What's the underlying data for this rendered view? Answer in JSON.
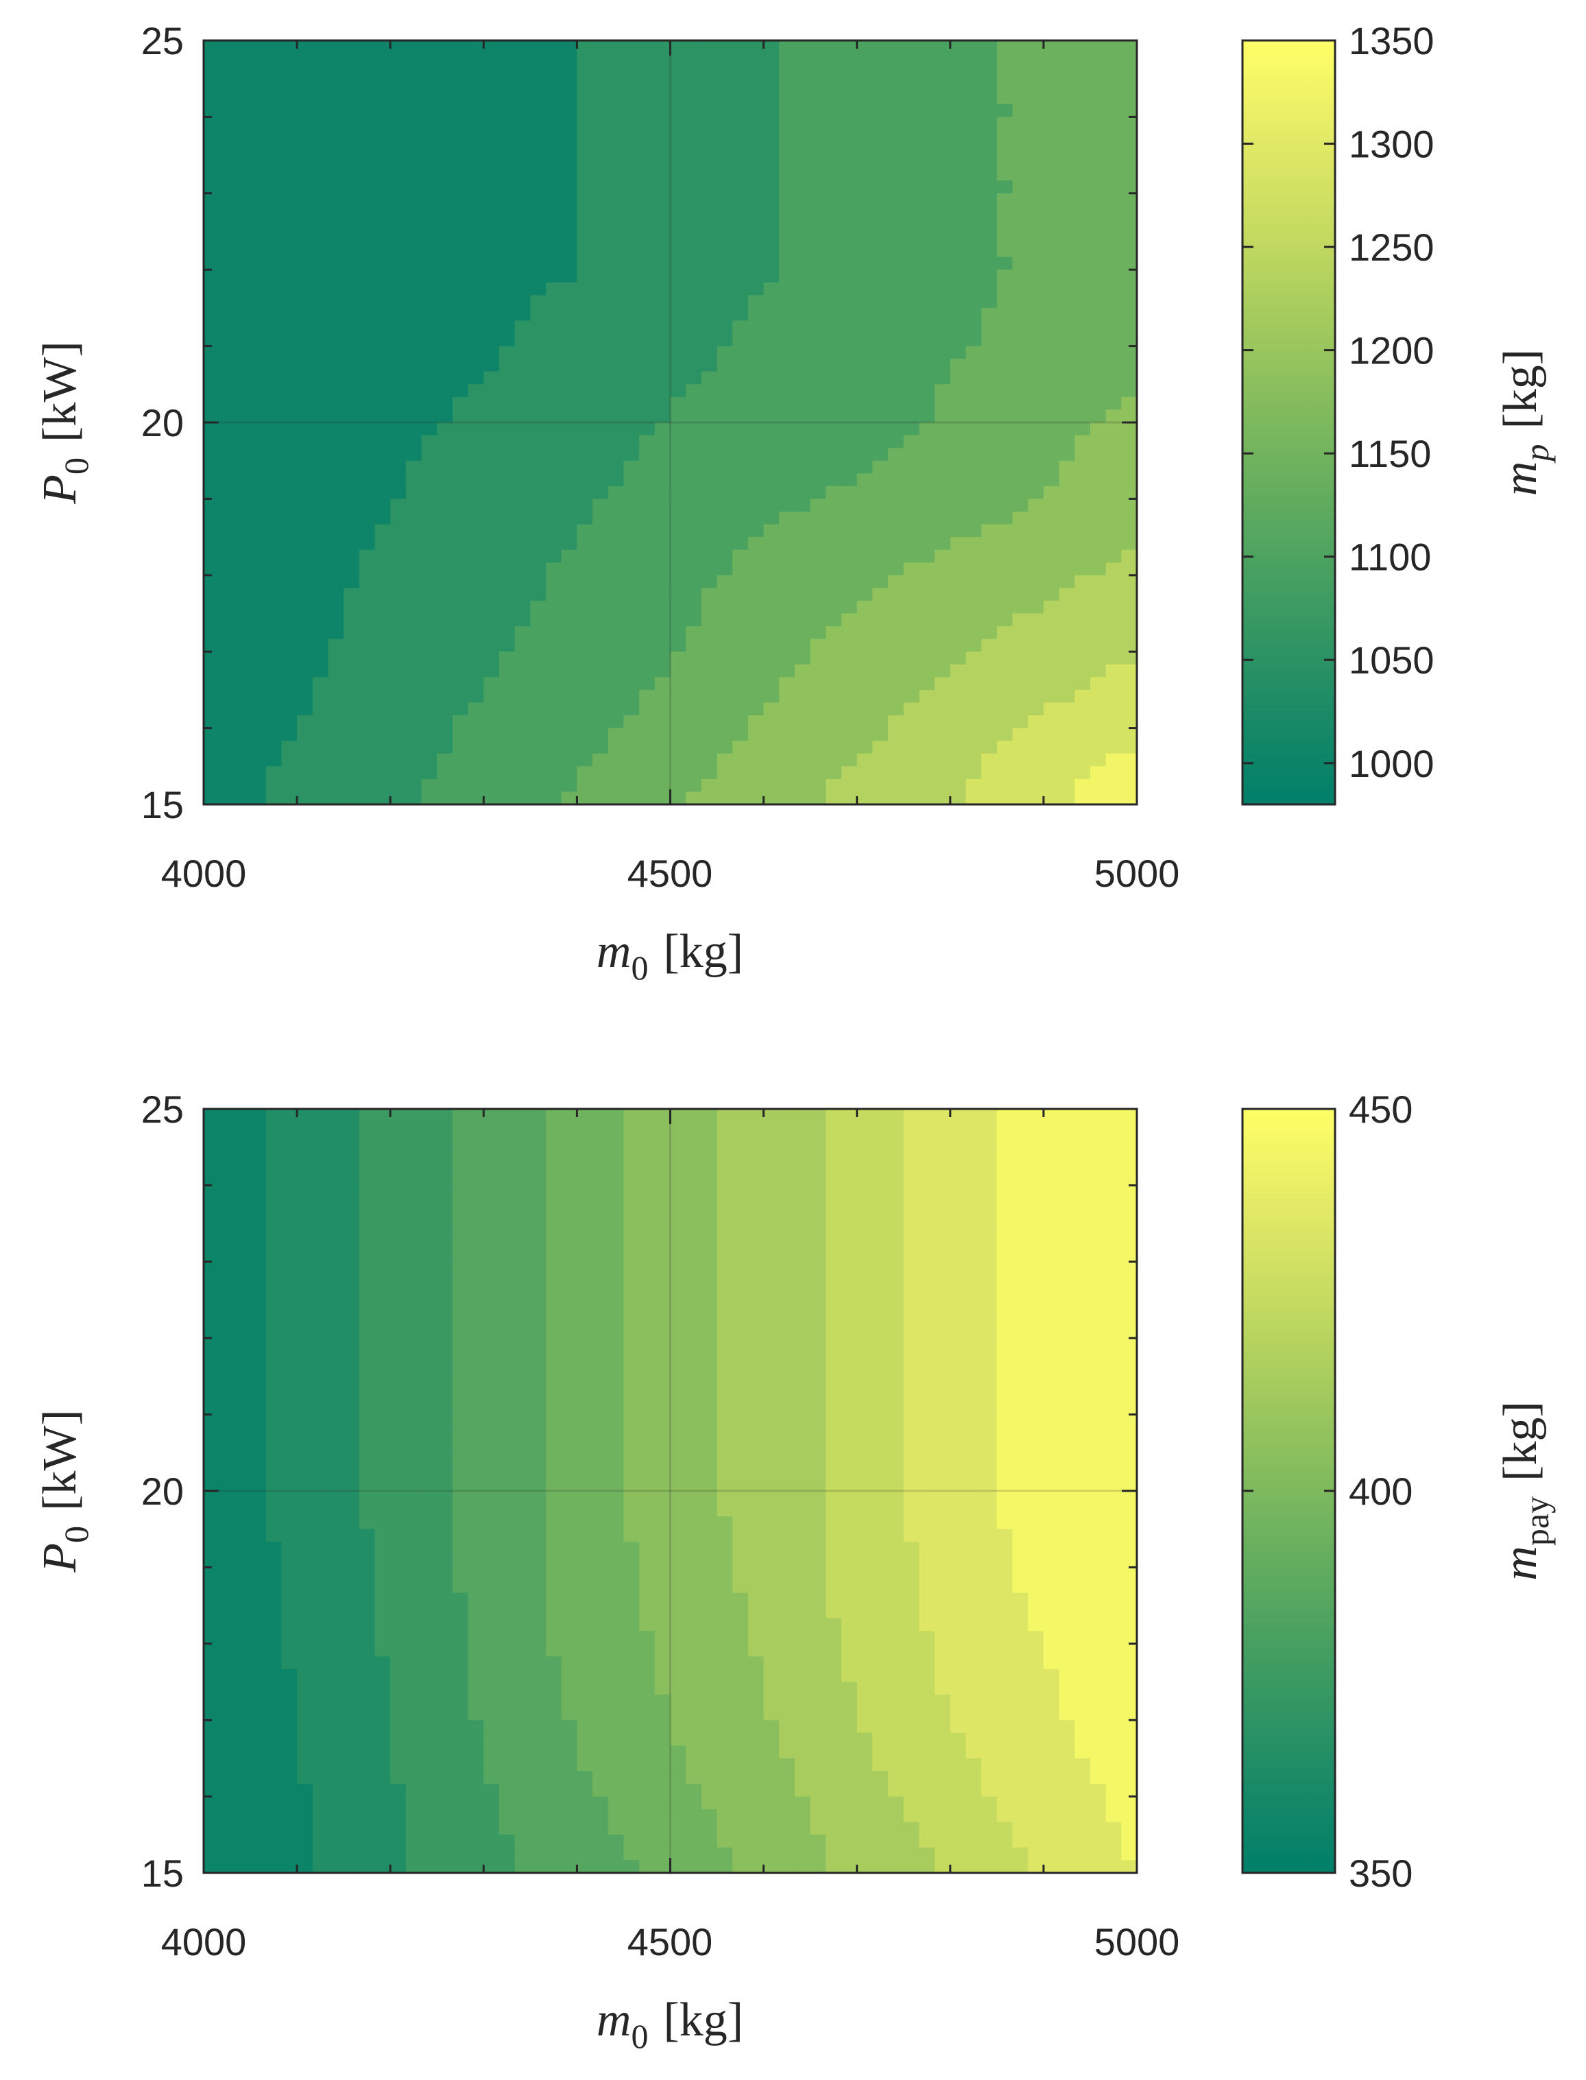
{
  "chart_data": [
    {
      "type": "heatmap",
      "subtype": "filled-contour",
      "xlabel": "m0 [kg]",
      "xlabel_parts": {
        "var": "m",
        "sub": "0",
        "unit": "[kg]"
      },
      "ylabel": "P0 [kW]",
      "ylabel_parts": {
        "var": "P",
        "sub": "0",
        "unit": "[kW]"
      },
      "colorbar_label": "mp [kg]",
      "colorbar_label_parts": {
        "var": "m",
        "sub": "p",
        "sub_italic": true,
        "unit": "[kg]"
      },
      "xlim": [
        4000,
        5000
      ],
      "ylim": [
        15,
        25
      ],
      "xticks": [
        4000,
        4500,
        5000
      ],
      "xtick_labels": [
        "4000",
        "4500",
        "5000"
      ],
      "yticks": [
        15,
        20,
        25
      ],
      "ytick_labels": [
        "15",
        "20",
        "25"
      ],
      "clim": [
        980,
        1350
      ],
      "cticks": [
        1000,
        1050,
        1100,
        1150,
        1200,
        1250,
        1300,
        1350
      ],
      "ctick_labels": [
        "1000",
        "1050",
        "1100",
        "1150",
        "1200",
        "1250",
        "1300",
        "1350"
      ],
      "grid": true,
      "x": [
        4000,
        4100,
        4200,
        4300,
        4400,
        4500,
        4600,
        4700,
        4800,
        4900,
        5000
      ],
      "y": [
        15,
        16,
        17,
        18,
        19,
        20,
        21,
        22,
        23,
        24,
        25
      ],
      "z": [
        [
          1005,
          1040,
          1065,
          1090,
          1125,
          1160,
          1195,
          1225,
          1255,
          1295,
          1340
        ],
        [
          1002,
          1025,
          1055,
          1080,
          1105,
          1135,
          1170,
          1200,
          1235,
          1265,
          1295
        ],
        [
          1000,
          1015,
          1045,
          1065,
          1090,
          1115,
          1150,
          1180,
          1205,
          1230,
          1255
        ],
        [
          1000,
          1010,
          1035,
          1055,
          1080,
          1105,
          1130,
          1155,
          1180,
          1200,
          1225
        ],
        [
          1000,
          1005,
          1025,
          1050,
          1065,
          1090,
          1110,
          1125,
          1140,
          1165,
          1180
        ],
        [
          995,
          1000,
          1015,
          1035,
          1055,
          1075,
          1090,
          1100,
          1125,
          1155,
          1175
        ],
        [
          990,
          1000,
          1005,
          1020,
          1045,
          1060,
          1080,
          1095,
          1115,
          1130,
          1150
        ],
        [
          988,
          995,
          1005,
          1015,
          1025,
          1050,
          1070,
          1090,
          1110,
          1125,
          1140
        ],
        [
          985,
          993,
          1005,
          1015,
          1025,
          1050,
          1070,
          1090,
          1110,
          1125,
          1140
        ],
        [
          983,
          992,
          1005,
          1015,
          1025,
          1050,
          1070,
          1090,
          1110,
          1125,
          1140
        ],
        [
          982,
          992,
          1005,
          1015,
          1025,
          1050,
          1070,
          1090,
          1110,
          1125,
          1140
        ]
      ]
    },
    {
      "type": "heatmap",
      "subtype": "filled-contour",
      "xlabel": "m0 [kg]",
      "xlabel_parts": {
        "var": "m",
        "sub": "0",
        "unit": "[kg]"
      },
      "ylabel": "P0 [kW]",
      "ylabel_parts": {
        "var": "P",
        "sub": "0",
        "unit": "[kW]"
      },
      "colorbar_label": "mpay [kg]",
      "colorbar_label_parts": {
        "var": "m",
        "sub": "pay",
        "sub_italic": false,
        "unit": "[kg]"
      },
      "xlim": [
        4000,
        5000
      ],
      "ylim": [
        15,
        25
      ],
      "xticks": [
        4000,
        4500,
        5000
      ],
      "xtick_labels": [
        "4000",
        "4500",
        "5000"
      ],
      "yticks": [
        15,
        20,
        25
      ],
      "ytick_labels": [
        "15",
        "20",
        "25"
      ],
      "clim": [
        350,
        450
      ],
      "cticks": [
        350,
        400,
        450
      ],
      "ctick_labels": [
        "350",
        "400",
        "450"
      ],
      "grid": true,
      "x": [
        4000,
        4100,
        4200,
        4300,
        4400,
        4500,
        4600,
        4700,
        4800,
        4900,
        5000
      ],
      "y": [
        15,
        16,
        17,
        18,
        19,
        20,
        21,
        22,
        23,
        24,
        25
      ],
      "z": [
        [
          353,
          358,
          368,
          377,
          385,
          393,
          403,
          412,
          421,
          431,
          440
        ],
        [
          353,
          359,
          369,
          379,
          388,
          397,
          406,
          416,
          426,
          435,
          443
        ],
        [
          353,
          360,
          370,
          381,
          391,
          400,
          409,
          420,
          430,
          438,
          446
        ],
        [
          353,
          361,
          371,
          382,
          393,
          402,
          411,
          422,
          432,
          440,
          448
        ],
        [
          353,
          362,
          372,
          383,
          394,
          404,
          413,
          424,
          434,
          443,
          450
        ],
        [
          353,
          363,
          373,
          384,
          394,
          405,
          414,
          424,
          435,
          445,
          451
        ],
        [
          353,
          363,
          373,
          384,
          394,
          405,
          414,
          424,
          435,
          446,
          452
        ],
        [
          353,
          363,
          373,
          384,
          394,
          405,
          414,
          424,
          435,
          446,
          452
        ],
        [
          353,
          363,
          373,
          384,
          394,
          405,
          414,
          424,
          435,
          446,
          452
        ],
        [
          353,
          363,
          373,
          384,
          394,
          405,
          414,
          424,
          435,
          446,
          452
        ],
        [
          353,
          363,
          373,
          384,
          394,
          405,
          414,
          424,
          435,
          446,
          452
        ]
      ]
    }
  ],
  "colormap": [
    "#007f6a",
    "#1c8b66",
    "#3a9a62",
    "#5aa95f",
    "#7db95d",
    "#a1c95d",
    "#c5db60",
    "#e4ea66",
    "#ffff66"
  ]
}
